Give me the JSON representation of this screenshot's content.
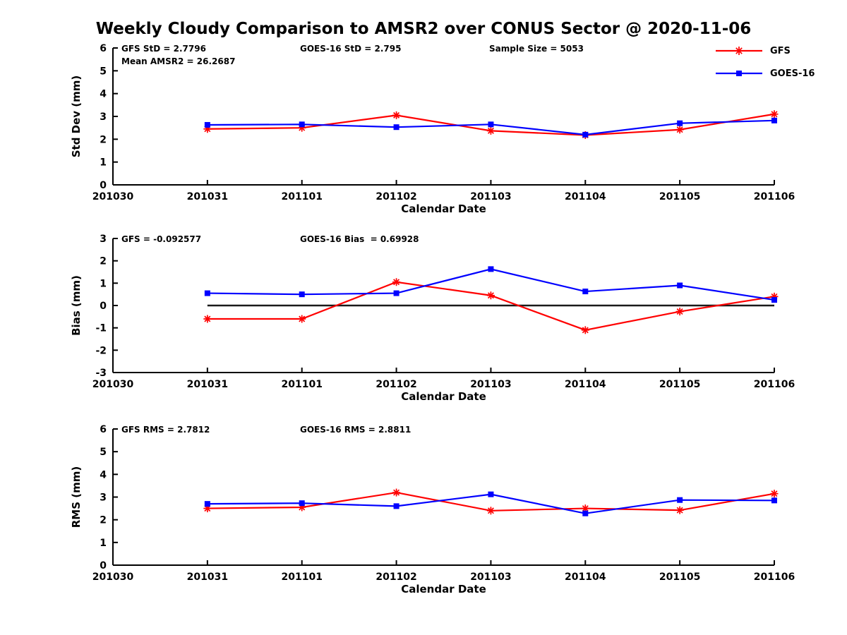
{
  "title": "Weekly Cloudy Comparison to AMSR2 over CONUS Sector @ 2020-11-06",
  "colors": {
    "gfs": "#ff0000",
    "goes16": "#0000ff",
    "axis": "#000000",
    "zero_line": "#1a1a1a"
  },
  "legend": {
    "items": [
      {
        "label": "GFS",
        "color": "#ff0000",
        "marker": "asterisk"
      },
      {
        "label": "GOES-16",
        "color": "#0000ff",
        "marker": "square"
      }
    ]
  },
  "chart_data": [
    {
      "type": "line",
      "name": "std-dev",
      "ylabel": "Std Dev (mm)",
      "xlabel": "Calendar Date",
      "ylim": [
        0,
        6
      ],
      "yticks": [
        0,
        1,
        2,
        3,
        4,
        5,
        6
      ],
      "categories": [
        "201030",
        "201031",
        "201101",
        "201102",
        "201103",
        "201104",
        "201105",
        "201106"
      ],
      "annotations": [
        {
          "text": "GFS StD = 2.7796",
          "slot": "left"
        },
        {
          "text": "Mean AMSR2 = 26.2687",
          "slot": "left2"
        },
        {
          "text": "GOES-16 StD = 2.795",
          "slot": "center"
        },
        {
          "text": "Sample Size = 5053",
          "slot": "right"
        }
      ],
      "zero_line": false,
      "series": [
        {
          "name": "GFS",
          "color": "#ff0000",
          "marker": "asterisk",
          "x": [
            "201031",
            "201101",
            "201102",
            "201103",
            "201104",
            "201105",
            "201106"
          ],
          "values": [
            2.45,
            2.5,
            3.05,
            2.37,
            2.18,
            2.42,
            3.1
          ]
        },
        {
          "name": "GOES-16",
          "color": "#0000ff",
          "marker": "square",
          "x": [
            "201031",
            "201101",
            "201102",
            "201103",
            "201104",
            "201105",
            "201106"
          ],
          "values": [
            2.63,
            2.65,
            2.53,
            2.65,
            2.2,
            2.7,
            2.82
          ]
        }
      ]
    },
    {
      "type": "line",
      "name": "bias",
      "ylabel": "Bias (mm)",
      "xlabel": "Calendar Date",
      "ylim": [
        -3,
        3
      ],
      "yticks": [
        -3,
        -2,
        -1,
        0,
        1,
        2,
        3
      ],
      "categories": [
        "201030",
        "201031",
        "201101",
        "201102",
        "201103",
        "201104",
        "201105",
        "201106"
      ],
      "annotations": [
        {
          "text": "GFS = -0.092577",
          "slot": "left"
        },
        {
          "text": "GOES-16 Bias  = 0.69928",
          "slot": "center"
        }
      ],
      "zero_line": true,
      "series": [
        {
          "name": "GFS",
          "color": "#ff0000",
          "marker": "asterisk",
          "x": [
            "201031",
            "201101",
            "201102",
            "201103",
            "201104",
            "201105",
            "201106"
          ],
          "values": [
            -0.6,
            -0.6,
            1.05,
            0.45,
            -1.1,
            -0.27,
            0.4
          ]
        },
        {
          "name": "GOES-16",
          "color": "#0000ff",
          "marker": "square",
          "x": [
            "201031",
            "201101",
            "201102",
            "201103",
            "201104",
            "201105",
            "201106"
          ],
          "values": [
            0.55,
            0.5,
            0.55,
            1.63,
            0.63,
            0.9,
            0.25
          ]
        }
      ]
    },
    {
      "type": "line",
      "name": "rms",
      "ylabel": "RMS (mm)",
      "xlabel": "Calendar Date",
      "ylim": [
        0,
        6
      ],
      "yticks": [
        0,
        1,
        2,
        3,
        4,
        5,
        6
      ],
      "categories": [
        "201030",
        "201031",
        "201101",
        "201102",
        "201103",
        "201104",
        "201105",
        "201106"
      ],
      "annotations": [
        {
          "text": "GFS RMS = 2.7812",
          "slot": "left"
        },
        {
          "text": "GOES-16 RMS = 2.8811",
          "slot": "center"
        }
      ],
      "zero_line": false,
      "series": [
        {
          "name": "GFS",
          "color": "#ff0000",
          "marker": "asterisk",
          "x": [
            "201031",
            "201101",
            "201102",
            "201103",
            "201104",
            "201105",
            "201106"
          ],
          "values": [
            2.5,
            2.55,
            3.2,
            2.4,
            2.5,
            2.42,
            3.15
          ]
        },
        {
          "name": "GOES-16",
          "color": "#0000ff",
          "marker": "square",
          "x": [
            "201031",
            "201101",
            "201102",
            "201103",
            "201104",
            "201105",
            "201106"
          ],
          "values": [
            2.7,
            2.73,
            2.6,
            3.12,
            2.28,
            2.87,
            2.85
          ]
        }
      ]
    }
  ]
}
